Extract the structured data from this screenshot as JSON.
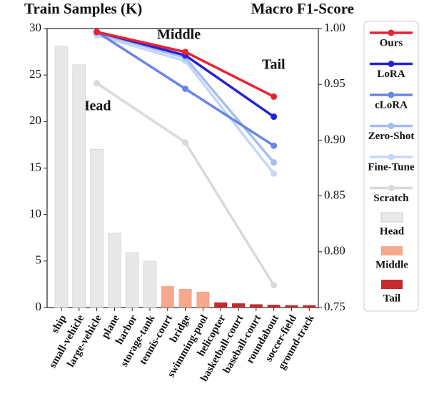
{
  "chart_data": [
    {
      "type": "bar",
      "ylabel": "Train Samples (K)",
      "annotations": [
        "Head",
        "Middle",
        "Tail"
      ],
      "categories": [
        "ship",
        "small-vehicle",
        "large-vehicle",
        "plane",
        "harbor",
        "storage-tank",
        "tennis-court",
        "bridge",
        "swimming-pool",
        "helicopter",
        "basketball-court",
        "baseball-court",
        "roundabout",
        "soccer-field",
        "ground-track"
      ],
      "series": [
        {
          "name": "Head",
          "color": "#e8e8e8",
          "values": [
            28.1,
            26.1,
            17.0,
            8.0,
            5.9,
            5.0,
            null,
            null,
            null,
            null,
            null,
            null,
            null,
            null,
            null
          ]
        },
        {
          "name": "Middle",
          "color": "#f5a88c",
          "values": [
            null,
            null,
            null,
            null,
            null,
            null,
            2.3,
            2.0,
            1.7,
            null,
            null,
            null,
            null,
            null,
            null
          ]
        },
        {
          "name": "Tail",
          "color": "#c62a2a",
          "values": [
            null,
            null,
            null,
            null,
            null,
            null,
            null,
            null,
            null,
            0.55,
            0.45,
            0.35,
            0.3,
            0.25,
            0.25
          ]
        }
      ],
      "ylim": [
        0,
        30
      ],
      "yticks": [
        0,
        5,
        10,
        15,
        20,
        25,
        30
      ]
    },
    {
      "type": "line",
      "ylabel": "Macro F1-Score",
      "categories": [
        "large-vehicle",
        "bridge",
        "roundabout"
      ],
      "series": [
        {
          "name": "Scratch",
          "color": "#d9d9d9",
          "values": [
            0.951,
            0.898,
            0.77
          ]
        },
        {
          "name": "Fine-Tune",
          "color": "#c5d6f7",
          "values": [
            0.994,
            0.971,
            0.87
          ]
        },
        {
          "name": "Zero-Shot",
          "color": "#a4bdf3",
          "values": [
            0.996,
            0.974,
            0.88
          ]
        },
        {
          "name": "cLoRA",
          "color": "#6b84e6",
          "values": [
            0.997,
            0.946,
            0.895
          ]
        },
        {
          "name": "LoRA",
          "color": "#2323d6",
          "values": [
            0.997,
            0.976,
            0.921
          ]
        },
        {
          "name": "Ours",
          "color": "#ec2233",
          "values": [
            0.997,
            0.979,
            0.939
          ]
        }
      ],
      "ylim": [
        0.75,
        1.0
      ],
      "yticks": [
        0.75,
        {
          "value": 0.8,
          "label": "0.80"
        },
        0.85,
        {
          "value": 0.9,
          "label": "0.90"
        },
        0.95,
        {
          "value": 1.0,
          "label": "1.00"
        }
      ]
    }
  ]
}
